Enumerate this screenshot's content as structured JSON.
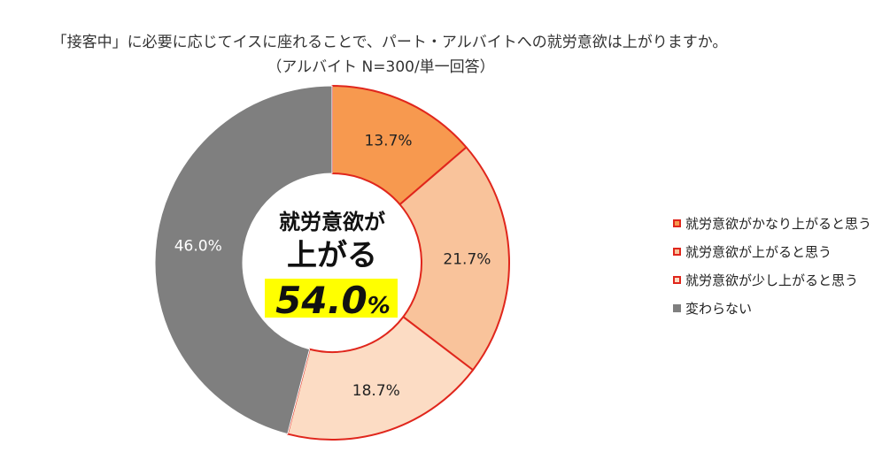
{
  "title": "「接客中」に必要に応じてイスに座れることで、パート・アルバイトへの就労意欲は上がりますか。",
  "subtitle": "（アルバイト N=300/単一回答）",
  "center": {
    "line1": "就労意欲が",
    "line2": "上がる",
    "value": "54.0",
    "unit": "%"
  },
  "colors": {
    "accent_border": "#e0261c",
    "highlight": "#ffff00",
    "gray": "#7f7f7f"
  },
  "chart_data": {
    "type": "pie",
    "variant": "donut",
    "start_angle_deg": 0,
    "direction": "clockwise",
    "slices": [
      {
        "label": "就労意欲がかなり上がると思う",
        "value": 13.7,
        "display": "13.7%",
        "color": "#f7994f"
      },
      {
        "label": "就労意欲が上がると思う",
        "value": 21.7,
        "display": "21.7%",
        "color": "#f9c39b"
      },
      {
        "label": "就労意欲が少し上がると思う",
        "value": 18.7,
        "display": "18.7%",
        "color": "#fcdcc4"
      },
      {
        "label": "変わらない",
        "value": 46.0,
        "display": "46.0%",
        "color": "#7f7f7f"
      }
    ],
    "legend_position": "right"
  }
}
